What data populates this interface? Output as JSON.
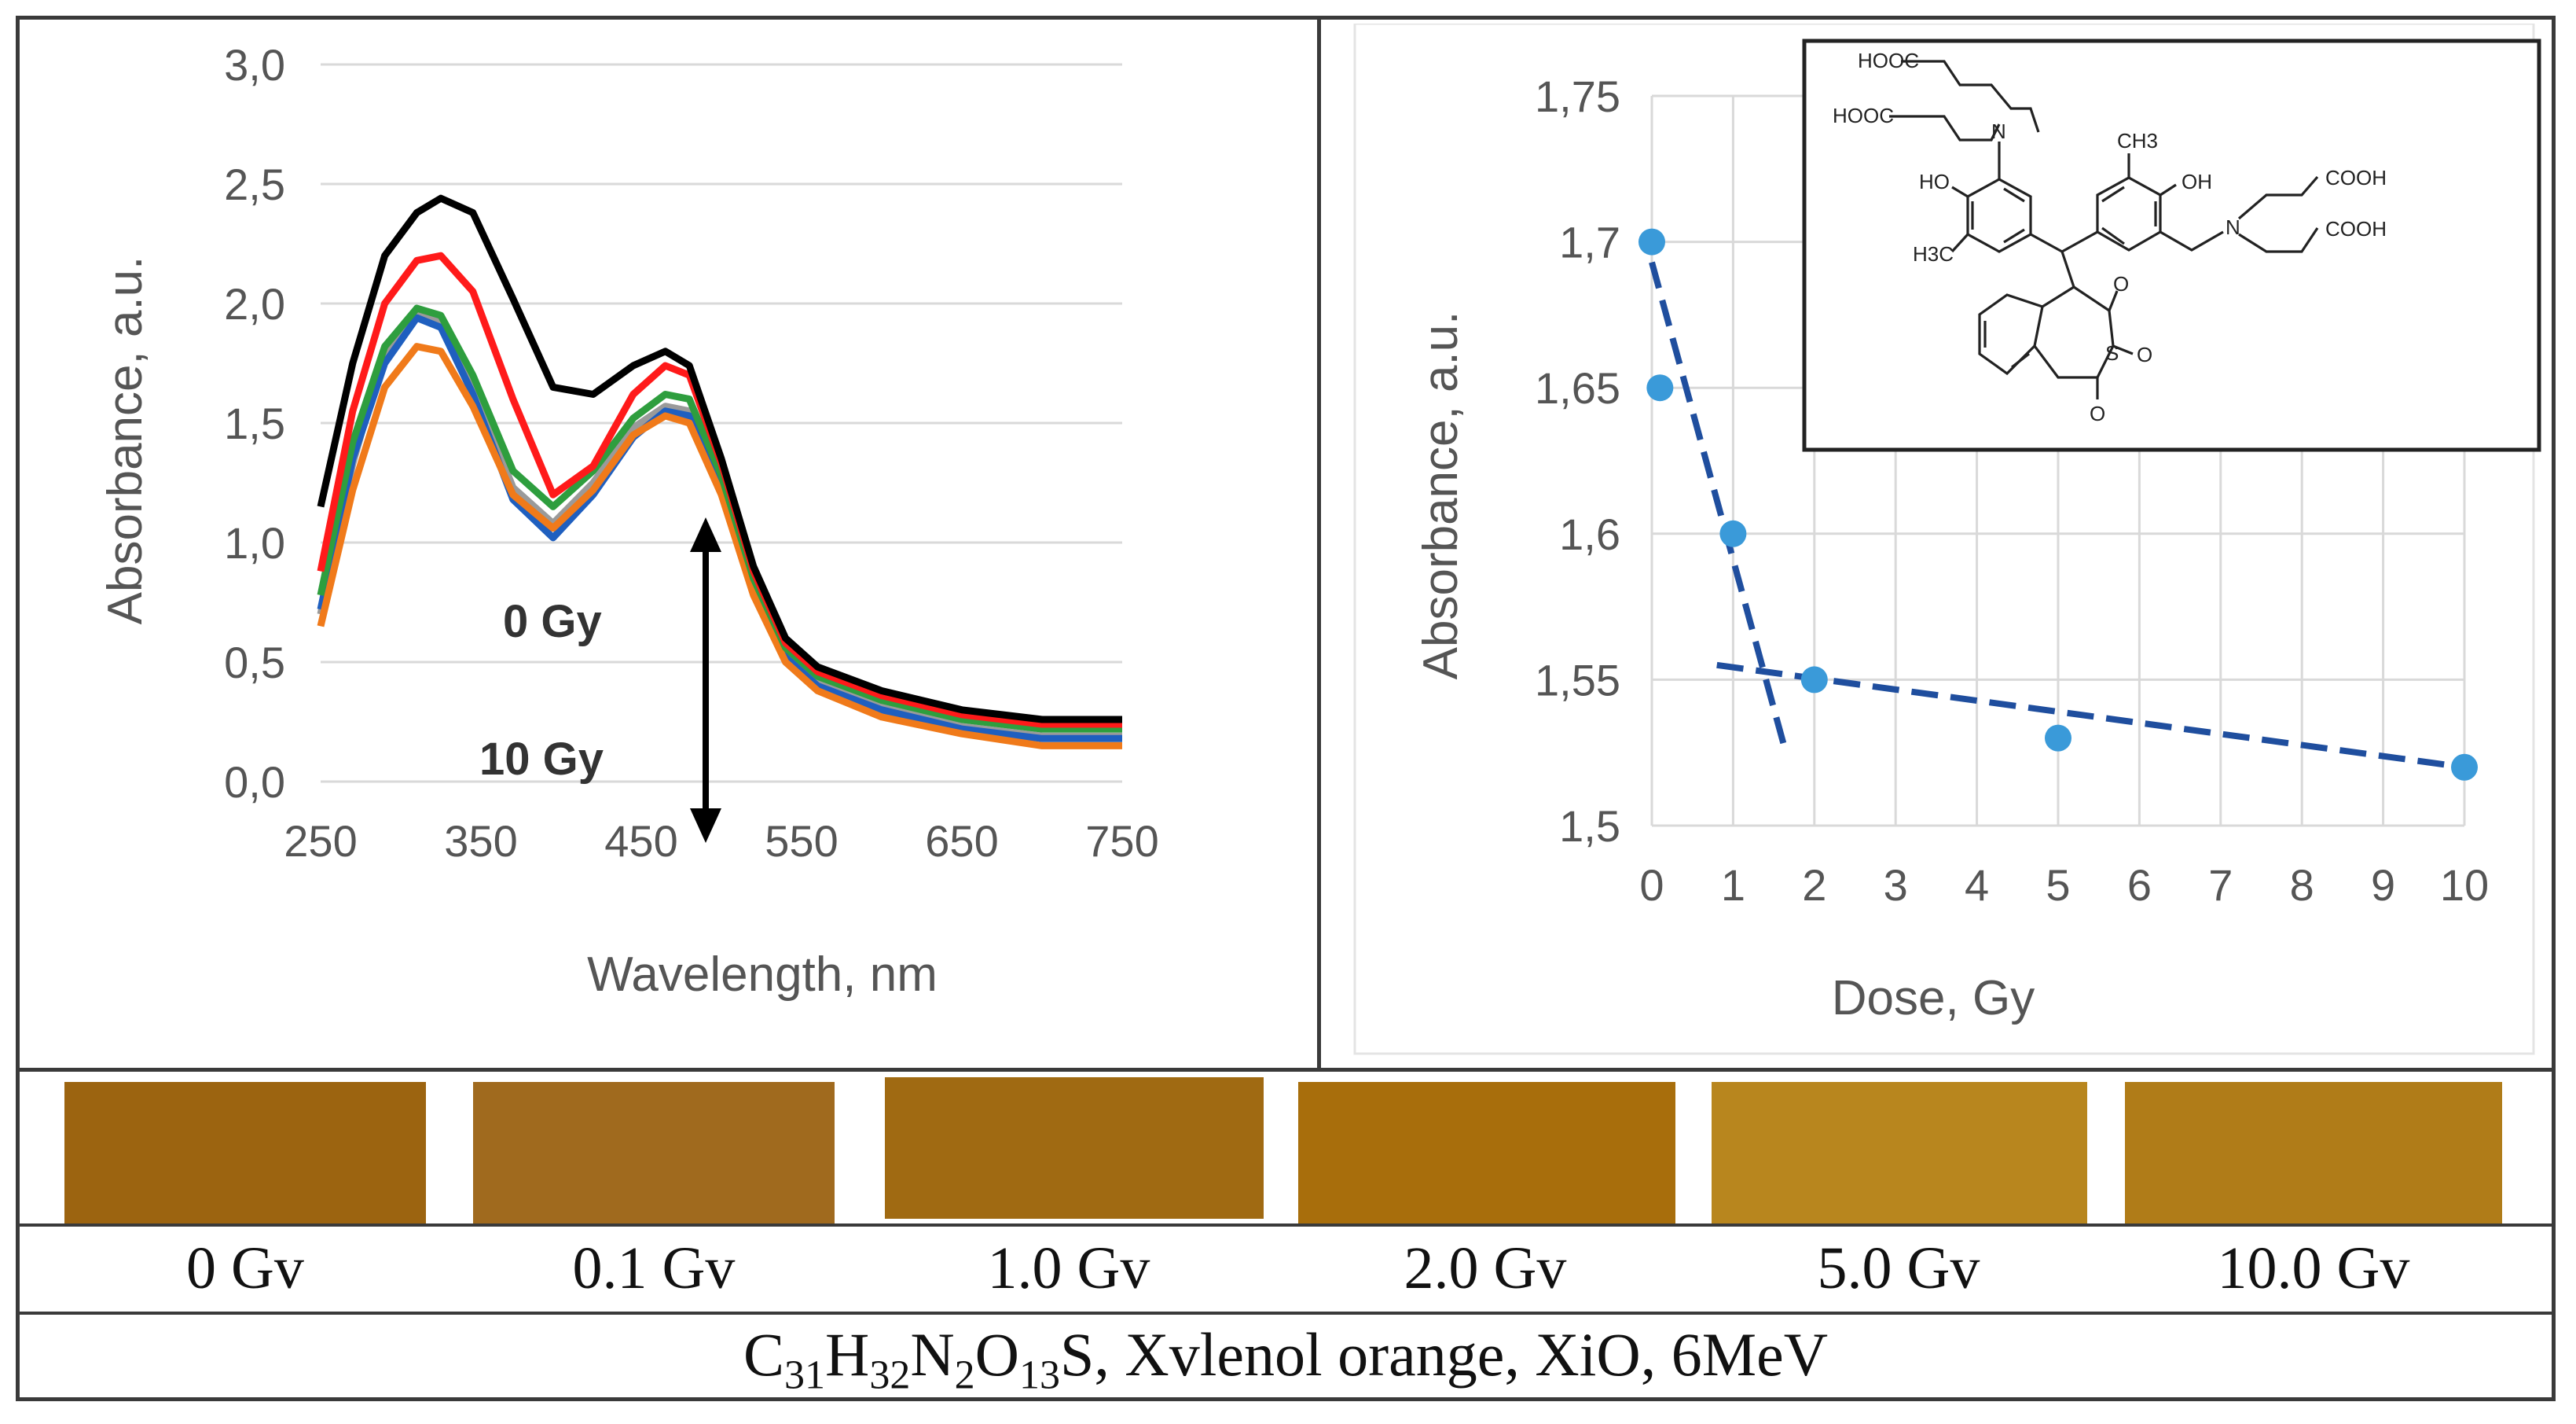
{
  "chart_data": [
    {
      "type": "line",
      "title": "",
      "xlabel": "Wavelength, nm",
      "ylabel": "Absorbance, a.u.",
      "xlim": [
        250,
        750
      ],
      "ylim": [
        0.0,
        3.0
      ],
      "xticks": [
        "250",
        "350",
        "450",
        "550",
        "650",
        "750"
      ],
      "yticks": [
        "0,0",
        "0,5",
        "1,0",
        "1,5",
        "2,0",
        "2,5",
        "3,0"
      ],
      "annotations": [
        "0 Gy",
        "10 Gy"
      ],
      "x": [
        250,
        270,
        290,
        310,
        325,
        345,
        370,
        395,
        420,
        445,
        465,
        480,
        500,
        520,
        540,
        560,
        600,
        650,
        700,
        750
      ],
      "series": [
        {
          "name": "0 Gy",
          "color": "#000000",
          "values": [
            1.15,
            1.75,
            2.2,
            2.38,
            2.44,
            2.38,
            2.02,
            1.65,
            1.62,
            1.74,
            1.8,
            1.74,
            1.35,
            0.9,
            0.6,
            0.48,
            0.38,
            0.3,
            0.26,
            0.26
          ]
        },
        {
          "name": "0.1 Gy",
          "color": "#ff1a1a",
          "values": [
            0.88,
            1.55,
            2.0,
            2.18,
            2.2,
            2.05,
            1.6,
            1.2,
            1.32,
            1.62,
            1.74,
            1.7,
            1.33,
            0.88,
            0.58,
            0.46,
            0.36,
            0.28,
            0.24,
            0.24
          ]
        },
        {
          "name": "1.0 Gy",
          "color": "#2e9e3e",
          "values": [
            0.78,
            1.42,
            1.82,
            1.98,
            1.95,
            1.7,
            1.3,
            1.15,
            1.3,
            1.52,
            1.62,
            1.6,
            1.28,
            0.85,
            0.56,
            0.44,
            0.34,
            0.26,
            0.22,
            0.22
          ]
        },
        {
          "name": "2.0 Gy",
          "color": "#1f5fbf",
          "values": [
            0.72,
            1.35,
            1.75,
            1.94,
            1.9,
            1.62,
            1.18,
            1.02,
            1.2,
            1.44,
            1.55,
            1.53,
            1.24,
            0.82,
            0.52,
            0.4,
            0.3,
            0.22,
            0.18,
            0.18
          ]
        },
        {
          "name": "5.0 Gy",
          "color": "#9a9a9a",
          "values": [
            0.7,
            1.33,
            1.8,
            1.97,
            1.93,
            1.65,
            1.23,
            1.08,
            1.25,
            1.48,
            1.57,
            1.55,
            1.25,
            0.83,
            0.53,
            0.41,
            0.31,
            0.23,
            0.19,
            0.19
          ]
        },
        {
          "name": "10.0 Gy",
          "color": "#f07a1a",
          "values": [
            0.65,
            1.22,
            1.65,
            1.82,
            1.8,
            1.57,
            1.2,
            1.06,
            1.22,
            1.45,
            1.53,
            1.5,
            1.2,
            0.78,
            0.5,
            0.38,
            0.27,
            0.2,
            0.15,
            0.15
          ]
        }
      ]
    },
    {
      "type": "scatter",
      "title": "",
      "xlabel": "Dose, Gy",
      "ylabel": "Absorbance, a.u.",
      "xlim": [
        0,
        10
      ],
      "ylim": [
        1.5,
        1.75
      ],
      "xticks": [
        "0",
        "1",
        "2",
        "3",
        "4",
        "5",
        "6",
        "7",
        "8",
        "9",
        "10"
      ],
      "yticks": [
        "1,5",
        "1,55",
        "1,6",
        "1,65",
        "1,7",
        "1,75"
      ],
      "point_color": "#3a9ad9",
      "points": [
        {
          "x": 0,
          "y": 1.7
        },
        {
          "x": 0.1,
          "y": 1.65
        },
        {
          "x": 1,
          "y": 1.6
        },
        {
          "x": 2,
          "y": 1.55
        },
        {
          "x": 5,
          "y": 1.53
        },
        {
          "x": 10,
          "y": 1.52
        }
      ],
      "trendlines": [
        {
          "color": "#1f4e9e",
          "x": [
            0,
            1.65
          ],
          "y": [
            1.693,
            1.525
          ]
        },
        {
          "color": "#1f4e9e",
          "x": [
            0.8,
            10
          ],
          "y": [
            1.555,
            1.52
          ]
        }
      ]
    }
  ],
  "structure_labels": {
    "top_left": "HOOC",
    "left": "HOOC",
    "n_left": "N",
    "ho": "HO",
    "h3c": "H3C",
    "ch3": "CH3",
    "oh": "OH",
    "cooh1": "COOH",
    "n_right": "N",
    "cooh2": "COOH",
    "o": "O",
    "s": "S",
    "o2a": "O",
    "o2b": "O"
  },
  "swatches": [
    {
      "label": "0 Gv",
      "color": "#9c6410"
    },
    {
      "label": "0.1 Gv",
      "color": "#a06a1e"
    },
    {
      "label": "1.0 Gv",
      "color": "#a06a12"
    },
    {
      "label": "2.0 Gv",
      "color": "#a86e0c"
    },
    {
      "label": "5.0 Gv",
      "color": "#b8861e"
    },
    {
      "label": "10.0 Gv",
      "color": "#b07c18"
    }
  ],
  "caption": {
    "prefix": "C",
    "n1": "31",
    "h": "H",
    "n2": "32",
    "n": "N",
    "n3": "2",
    "o": "O",
    "n4": "13",
    "suffix": "S, Xvlenol orange, XiO, 6MeV"
  }
}
